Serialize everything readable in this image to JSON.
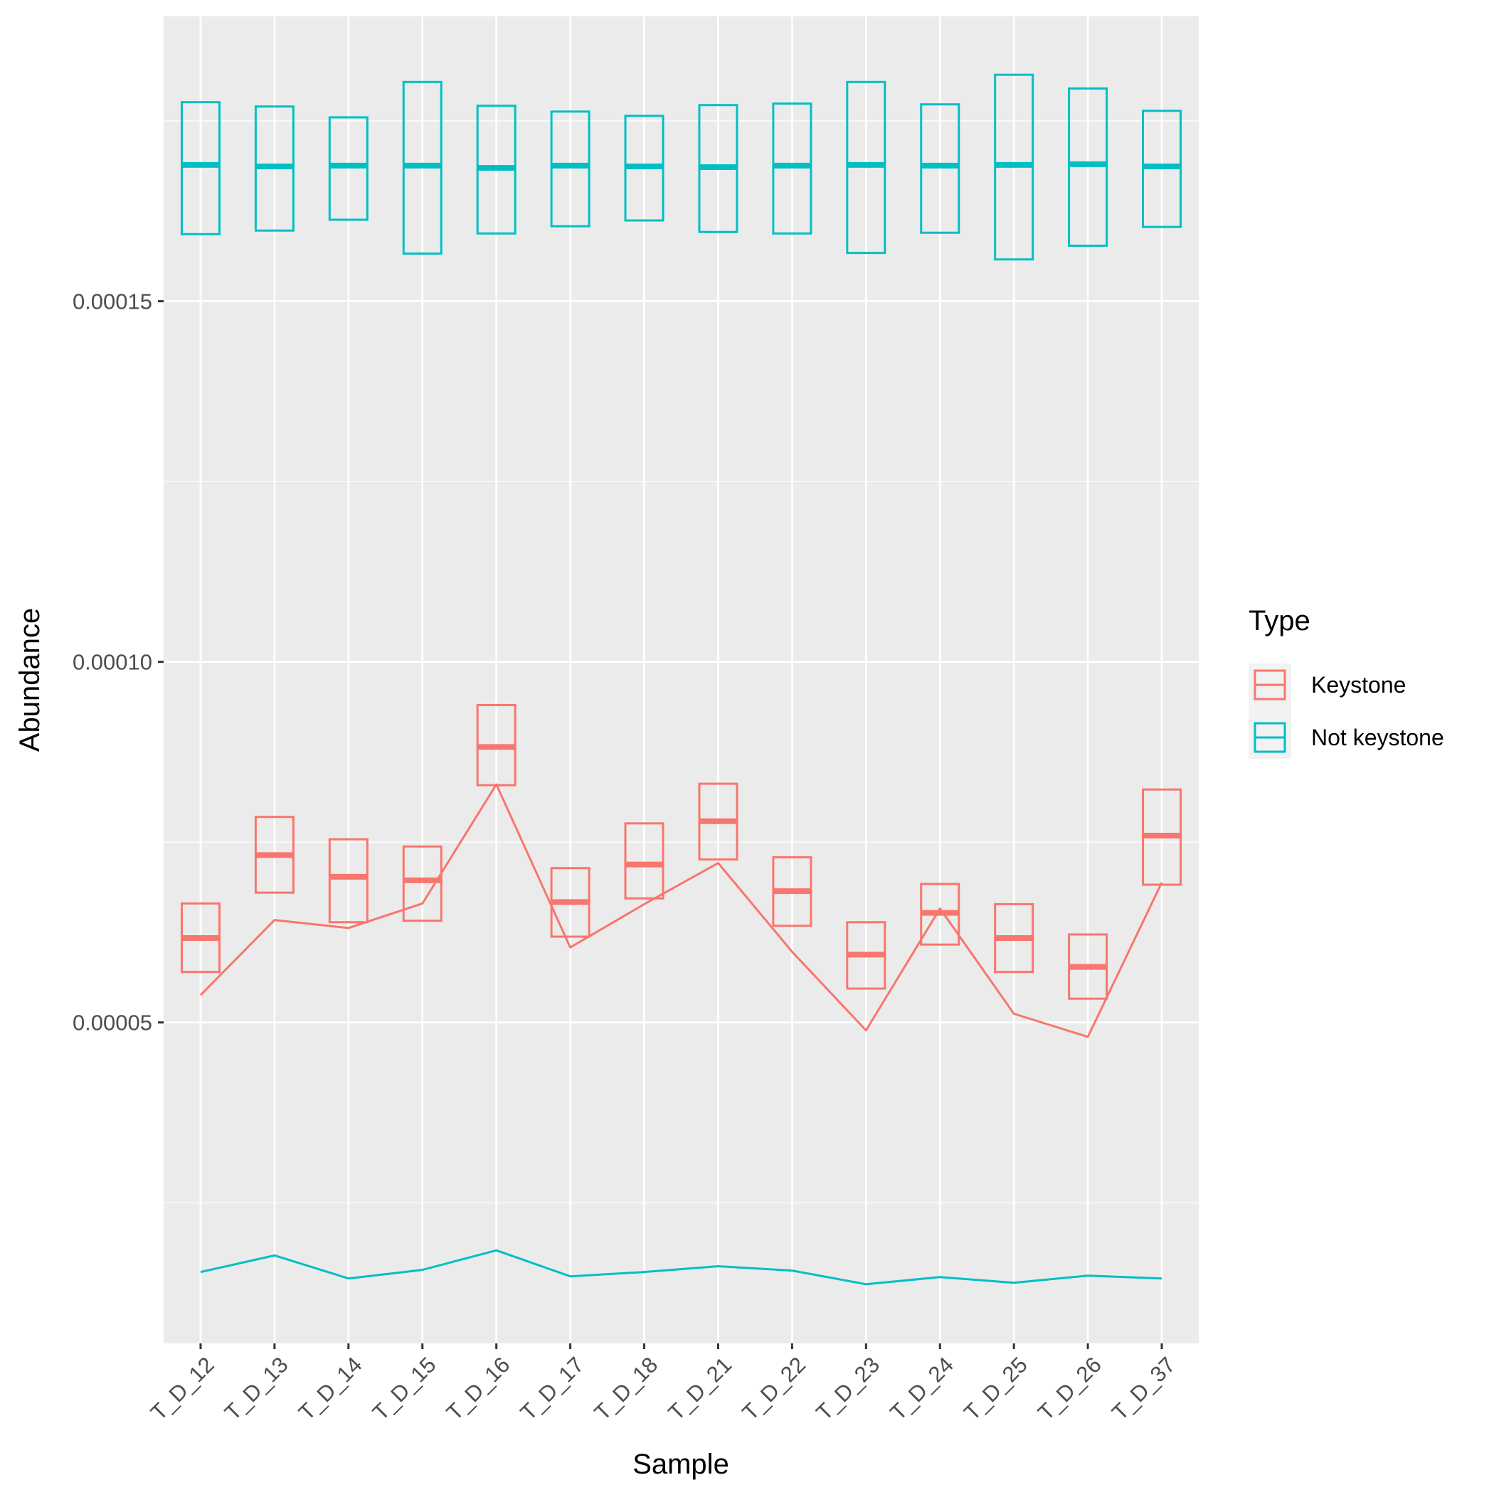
{
  "chart_data": {
    "type": "boxplot_with_lines",
    "xlabel": "Sample",
    "ylabel": "Abundance",
    "categories": [
      "T_D_12",
      "T_D_13",
      "T_D_14",
      "T_D_15",
      "T_D_16",
      "T_D_17",
      "T_D_18",
      "T_D_21",
      "T_D_22",
      "T_D_23",
      "T_D_24",
      "T_D_25",
      "T_D_26",
      "T_D_37"
    ],
    "ylim": [
      5.5e-06,
      0.0001895
    ],
    "y_ticks": [
      5e-05,
      0.0001,
      0.00015
    ],
    "y_tick_labels": [
      "0.00005",
      "0.00010",
      "0.00015"
    ],
    "y_minor_ticks": [
      2.5e-05,
      7.5e-05,
      0.000125,
      0.000175
    ],
    "grid": true,
    "legend": {
      "title": "Type",
      "position": "right",
      "entries": [
        {
          "label": "Keystone",
          "color": "#F8766D"
        },
        {
          "label": "Not keystone",
          "color": "#00BFC4"
        }
      ]
    },
    "series": [
      {
        "name": "Keystone",
        "color": "#F8766D",
        "boxes": [
          {
            "q1": 5.7e-05,
            "median": 6.17e-05,
            "q3": 6.65e-05
          },
          {
            "q1": 6.8e-05,
            "median": 7.32e-05,
            "q3": 7.85e-05
          },
          {
            "q1": 6.39e-05,
            "median": 7.02e-05,
            "q3": 7.54e-05
          },
          {
            "q1": 6.41e-05,
            "median": 6.97e-05,
            "q3": 7.44e-05
          },
          {
            "q1": 8.29e-05,
            "median": 8.82e-05,
            "q3": 9.4e-05
          },
          {
            "q1": 6.19e-05,
            "median": 6.67e-05,
            "q3": 7.14e-05
          },
          {
            "q1": 6.72e-05,
            "median": 7.19e-05,
            "q3": 7.76e-05
          },
          {
            "q1": 7.26e-05,
            "median": 7.79e-05,
            "q3": 8.31e-05
          },
          {
            "q1": 6.34e-05,
            "median": 6.82e-05,
            "q3": 7.29e-05
          },
          {
            "q1": 5.47e-05,
            "median": 5.94e-05,
            "q3": 6.39e-05
          },
          {
            "q1": 6.08e-05,
            "median": 6.52e-05,
            "q3": 6.92e-05
          },
          {
            "q1": 5.7e-05,
            "median": 6.17e-05,
            "q3": 6.64e-05
          },
          {
            "q1": 5.33e-05,
            "median": 5.77e-05,
            "q3": 6.22e-05
          },
          {
            "q1": 6.91e-05,
            "median": 7.59e-05,
            "q3": 8.23e-05
          }
        ],
        "line": [
          5.38e-05,
          6.42e-05,
          6.31e-05,
          6.65e-05,
          8.3e-05,
          6.04e-05,
          6.64e-05,
          7.21e-05,
          5.98e-05,
          4.89e-05,
          6.58e-05,
          5.12e-05,
          4.8e-05,
          6.94e-05
        ]
      },
      {
        "name": "Not keystone",
        "color": "#00BFC4",
        "boxes": [
          {
            "q1": 0.0001593,
            "median": 0.0001689,
            "q3": 0.0001776
          },
          {
            "q1": 0.0001598,
            "median": 0.0001687,
            "q3": 0.000177
          },
          {
            "q1": 0.0001613,
            "median": 0.0001688,
            "q3": 0.0001755
          },
          {
            "q1": 0.0001566,
            "median": 0.0001688,
            "q3": 0.0001804
          },
          {
            "q1": 0.0001594,
            "median": 0.0001685,
            "q3": 0.0001771
          },
          {
            "q1": 0.0001604,
            "median": 0.0001688,
            "q3": 0.0001763
          },
          {
            "q1": 0.0001612,
            "median": 0.0001687,
            "q3": 0.0001757
          },
          {
            "q1": 0.0001596,
            "median": 0.0001686,
            "q3": 0.0001772
          },
          {
            "q1": 0.0001594,
            "median": 0.0001688,
            "q3": 0.0001774
          },
          {
            "q1": 0.0001567,
            "median": 0.0001689,
            "q3": 0.0001804
          },
          {
            "q1": 0.0001595,
            "median": 0.0001688,
            "q3": 0.0001773
          },
          {
            "q1": 0.0001558,
            "median": 0.0001689,
            "q3": 0.0001814
          },
          {
            "q1": 0.0001577,
            "median": 0.000169,
            "q3": 0.0001795
          },
          {
            "q1": 0.0001603,
            "median": 0.0001687,
            "q3": 0.0001764
          }
        ],
        "line": [
          1.54e-05,
          1.77e-05,
          1.45e-05,
          1.57e-05,
          1.84e-05,
          1.48e-05,
          1.54e-05,
          1.62e-05,
          1.56e-05,
          1.37e-05,
          1.47e-05,
          1.39e-05,
          1.49e-05,
          1.45e-05
        ]
      }
    ]
  }
}
